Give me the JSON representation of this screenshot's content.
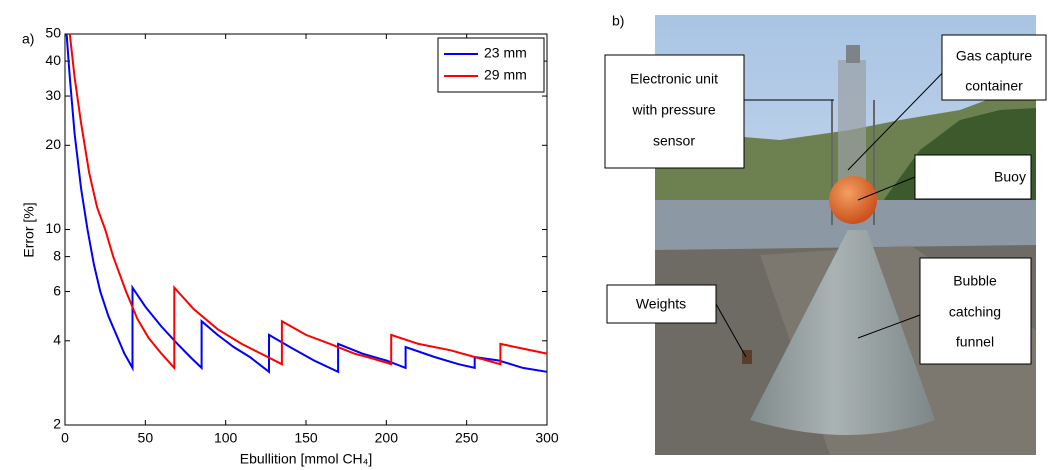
{
  "chart_data": {
    "type": "line",
    "panel_label": "a)",
    "xlabel": "Ebullition [mmol CH₄]",
    "ylabel": "Error [%]",
    "xlim": [
      0,
      300
    ],
    "xticks": [
      0,
      50,
      100,
      150,
      200,
      250,
      300
    ],
    "ylim": [
      2,
      50
    ],
    "yticks": [
      2,
      4,
      6,
      8,
      10,
      20,
      30,
      40,
      50
    ],
    "log_y": true,
    "grid": false,
    "legend": "upper right",
    "series": [
      {
        "name": "23 mm",
        "color": "#0000ff",
        "x": [
          1,
          3,
          6,
          10,
          14,
          18,
          22,
          27,
          32,
          37,
          42,
          42,
          50,
          60,
          70,
          78,
          85,
          85,
          95,
          105,
          115,
          127,
          127,
          140,
          155,
          170,
          170,
          185,
          200,
          212,
          212,
          230,
          245,
          255,
          255,
          270,
          285,
          300
        ],
        "values": [
          50,
          35,
          22,
          14,
          10,
          7.5,
          6,
          4.9,
          4.2,
          3.6,
          3.2,
          6.2,
          5.3,
          4.5,
          3.9,
          3.5,
          3.2,
          4.7,
          4.2,
          3.8,
          3.5,
          3.1,
          4.2,
          3.8,
          3.4,
          3.1,
          3.9,
          3.6,
          3.4,
          3.2,
          3.8,
          3.5,
          3.3,
          3.2,
          3.5,
          3.4,
          3.2,
          3.1
        ]
      },
      {
        "name": "29 mm",
        "color": "#ff0000",
        "x": [
          3,
          6,
          10,
          15,
          20,
          25,
          30,
          38,
          45,
          52,
          60,
          68,
          68,
          80,
          95,
          110,
          122,
          135,
          135,
          150,
          165,
          180,
          192,
          203,
          203,
          220,
          240,
          255,
          271,
          271,
          285,
          300
        ],
        "values": [
          50,
          35,
          24,
          16,
          12,
          10,
          8,
          6,
          4.8,
          4.1,
          3.6,
          3.2,
          6.2,
          5.2,
          4.4,
          3.9,
          3.6,
          3.3,
          4.7,
          4.2,
          3.9,
          3.6,
          3.45,
          3.3,
          4.2,
          3.9,
          3.7,
          3.5,
          3.3,
          3.9,
          3.75,
          3.6
        ]
      }
    ]
  },
  "photo": {
    "panel_label": "b)",
    "annotations": [
      {
        "lines": [
          "Electronic unit",
          "with pressure",
          "sensor"
        ]
      },
      {
        "lines": [
          "Gas capture",
          "container"
        ]
      },
      {
        "lines": [
          "Buoy"
        ]
      },
      {
        "lines": [
          "Bubble",
          "catching",
          "funnel"
        ]
      },
      {
        "lines": [
          "Weights"
        ]
      }
    ]
  }
}
